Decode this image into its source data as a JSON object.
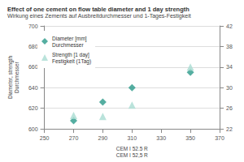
{
  "chart_data": {
    "type": "scatter",
    "title": "Effect of one cement on flow table diameter and 1 day strength",
    "subtitle": "Wirkung eines Zements auf Ausbreitdurchmesser und 1-Tages-Festigkeit",
    "x_label": "CEM I 52.5 R\nCEM I 52,5 R",
    "y_label": "Diameter, strength\nDurchmesser",
    "xlim": [
      250,
      370
    ],
    "xticks": [
      250,
      270,
      290,
      310,
      330,
      350,
      370
    ],
    "ylim": [
      600,
      700
    ],
    "yticks": [
      600,
      620,
      640,
      660,
      680,
      700
    ],
    "y2lim": [
      22,
      42
    ],
    "y2ticks": [
      22,
      26,
      30,
      34,
      38,
      42
    ],
    "grid": true,
    "legend": "upper left",
    "series": [
      {
        "name": "Diameter [mm]\nDurchmesser",
        "color": "#2a9a8a",
        "marker": "diamond",
        "x": [
          270,
          290,
          310,
          350
        ],
        "values": [
          608,
          626,
          640,
          655
        ]
      },
      {
        "name": "Strength [1 day]\nFestigkeit (1Tag)",
        "color": "#a9dcd2",
        "marker": "triangle",
        "axis": "y2",
        "x": [
          270,
          290,
          310,
          350
        ],
        "values": [
          24.6,
          24.4,
          26.6,
          34.0
        ]
      }
    ]
  }
}
